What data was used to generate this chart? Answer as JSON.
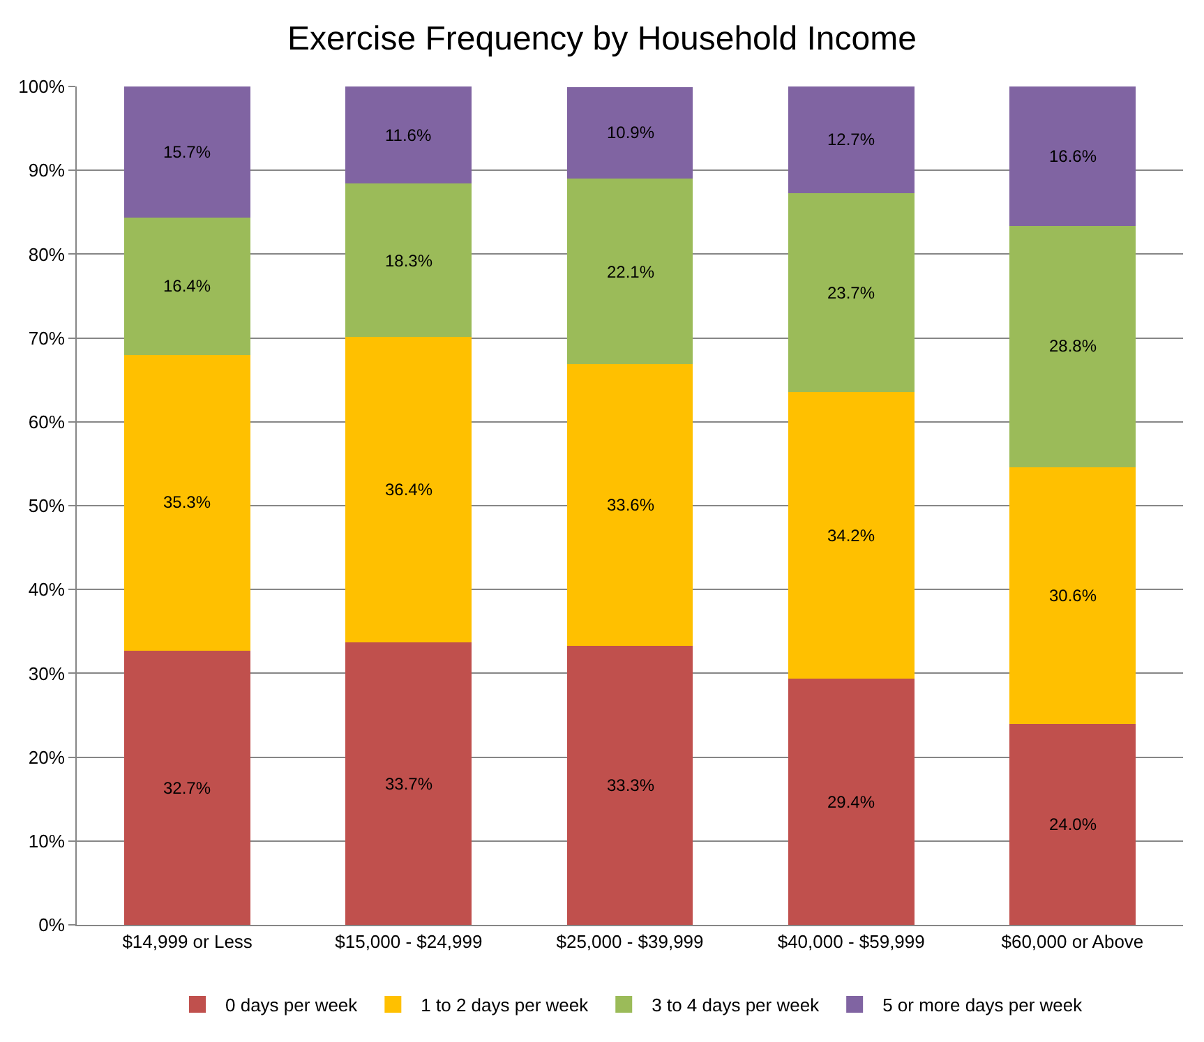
{
  "chart_data": {
    "type": "bar",
    "title": "Exercise Frequency by Household Income",
    "stacked": true,
    "categories": [
      "$14,999 or Less",
      "$15,000 - $24,999",
      "$25,000 - $39,999",
      "$40,000 - $59,999",
      "$60,000 or Above"
    ],
    "series": [
      {
        "name": "0 days per week",
        "color": "#c0504d",
        "values": [
          32.7,
          33.7,
          33.3,
          29.4,
          24.0
        ],
        "value_labels": [
          "32.7%",
          "33.7%",
          "33.3%",
          "29.4%",
          "24.0%"
        ]
      },
      {
        "name": "1 to 2 days per week",
        "color": "#ffc000",
        "values": [
          35.3,
          36.4,
          33.6,
          34.2,
          30.6
        ],
        "value_labels": [
          "35.3%",
          "36.4%",
          "33.6%",
          "34.2%",
          "30.6%"
        ]
      },
      {
        "name": "3 to 4 days per week",
        "color": "#9bbb59",
        "values": [
          16.4,
          18.3,
          22.1,
          23.7,
          28.8
        ],
        "value_labels": [
          "16.4%",
          "18.3%",
          "22.1%",
          "23.7%",
          "28.8%"
        ]
      },
      {
        "name": "5 or more days per week",
        "color": "#8064a2",
        "values": [
          15.7,
          11.6,
          10.9,
          12.7,
          16.6
        ],
        "value_labels": [
          "15.7%",
          "11.6%",
          "10.9%",
          "12.7%",
          "16.6%"
        ]
      }
    ],
    "ylim": [
      0,
      100
    ],
    "yticks": [
      {
        "value": 0,
        "label": "0%"
      },
      {
        "value": 10,
        "label": "10%"
      },
      {
        "value": 20,
        "label": "20%"
      },
      {
        "value": 30,
        "label": "30%"
      },
      {
        "value": 40,
        "label": "40%"
      },
      {
        "value": 50,
        "label": "50%"
      },
      {
        "value": 60,
        "label": "60%"
      },
      {
        "value": 70,
        "label": "70%"
      },
      {
        "value": 80,
        "label": "80%"
      },
      {
        "value": 90,
        "label": "90%"
      },
      {
        "value": 100,
        "label": "100%"
      }
    ],
    "grid": "y",
    "legend": "bottom"
  }
}
